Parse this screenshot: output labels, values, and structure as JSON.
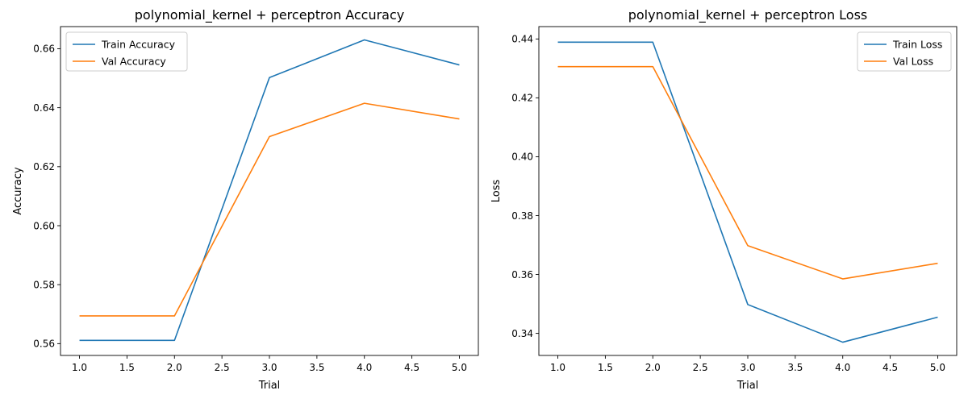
{
  "chart_data": [
    {
      "type": "line",
      "title": "polynomial_kernel + perceptron Accuracy",
      "xlabel": "Trial",
      "ylabel": "Accuracy",
      "xlim": [
        0.8,
        5.2
      ],
      "ylim": [
        0.556,
        0.6675
      ],
      "xticks": [
        1.0,
        1.5,
        2.0,
        2.5,
        3.0,
        3.5,
        4.0,
        4.5,
        5.0
      ],
      "xtick_labels": [
        "1.0",
        "1.5",
        "2.0",
        "2.5",
        "3.0",
        "3.5",
        "4.0",
        "4.5",
        "5.0"
      ],
      "yticks": [
        0.56,
        0.58,
        0.6,
        0.62,
        0.64,
        0.66
      ],
      "ytick_labels": [
        "0.56",
        "0.58",
        "0.60",
        "0.62",
        "0.64",
        "0.66"
      ],
      "grid": false,
      "legend_position": "top-left",
      "x": [
        1,
        2,
        3,
        4,
        5
      ],
      "series": [
        {
          "name": "Train Accuracy",
          "color": "#1f77b4",
          "values": [
            0.5611,
            0.5611,
            0.6502,
            0.663,
            0.6545
          ]
        },
        {
          "name": "Val Accuracy",
          "color": "#ff7f0e",
          "values": [
            0.5694,
            0.5694,
            0.6302,
            0.6415,
            0.6362
          ]
        }
      ]
    },
    {
      "type": "line",
      "title": "polynomial_kernel + perceptron Loss",
      "xlabel": "Trial",
      "ylabel": "Loss",
      "xlim": [
        0.8,
        5.2
      ],
      "ylim": [
        0.3325,
        0.4442
      ],
      "xticks": [
        1.0,
        1.5,
        2.0,
        2.5,
        3.0,
        3.5,
        4.0,
        4.5,
        5.0
      ],
      "xtick_labels": [
        "1.0",
        "1.5",
        "2.0",
        "2.5",
        "3.0",
        "3.5",
        "4.0",
        "4.5",
        "5.0"
      ],
      "yticks": [
        0.34,
        0.36,
        0.38,
        0.4,
        0.42,
        0.44
      ],
      "ytick_labels": [
        "0.34",
        "0.36",
        "0.38",
        "0.40",
        "0.42",
        "0.44"
      ],
      "grid": false,
      "legend_position": "top-right",
      "x": [
        1,
        2,
        3,
        4,
        5
      ],
      "series": [
        {
          "name": "Train Loss",
          "color": "#1f77b4",
          "values": [
            0.4389,
            0.4389,
            0.3498,
            0.337,
            0.3455
          ]
        },
        {
          "name": "Val Loss",
          "color": "#ff7f0e",
          "values": [
            0.4306,
            0.4306,
            0.3698,
            0.3585,
            0.3638
          ]
        }
      ]
    }
  ]
}
